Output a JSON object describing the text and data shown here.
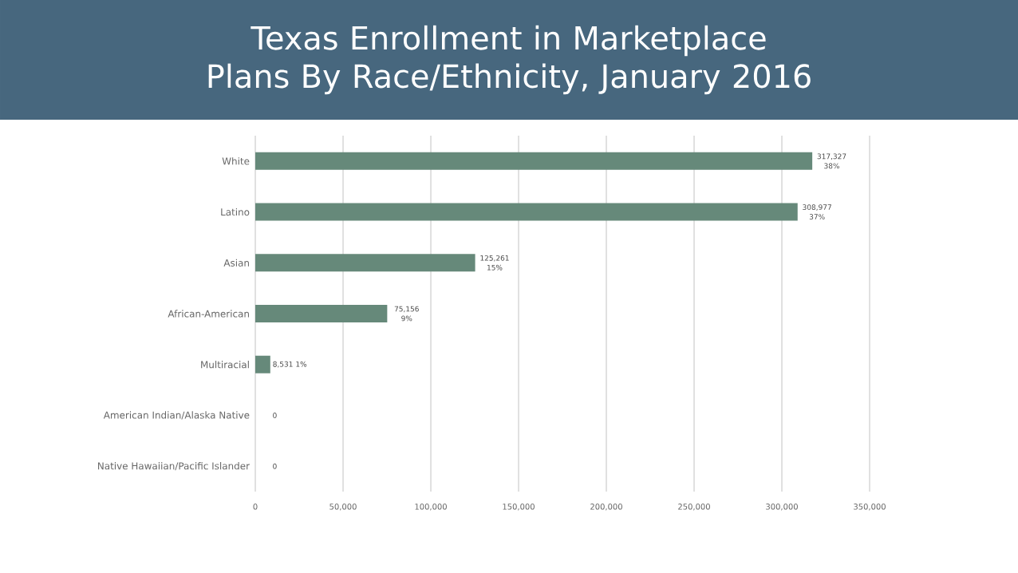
{
  "chart_data": {
    "type": "bar",
    "orientation": "horizontal",
    "title": "Texas Enrollment in Marketplace Plans By Race/Ethnicity, January 2016",
    "categories": [
      "White",
      "Latino",
      "Asian",
      "African-American",
      "Multiracial",
      "American Indian/Alaska Native",
      "Native Hawaiian/Pacific Islander"
    ],
    "values": [
      317327,
      308977,
      125261,
      75156,
      8531,
      0,
      0
    ],
    "value_labels": [
      "317,327 38%",
      "308,977 37%",
      "125,261 15%",
      "75,156 9%",
      "8,531 1%",
      "0",
      "0"
    ],
    "color": "#66897a",
    "xlim": [
      0,
      350000
    ],
    "xticks": [
      0,
      {
        "value": 50000,
        "label": "50,000"
      },
      {
        "value": 100000,
        "label": "100,000"
      },
      {
        "value": 150000,
        "label": "150,000"
      },
      {
        "value": 200000,
        "label": "200,000"
      },
      {
        "value": 250000,
        "label": "250,000"
      },
      {
        "value": 300000,
        "label": "300,000"
      },
      {
        "value": 350000,
        "label": "350,000"
      }
    ],
    "grid": "x"
  }
}
